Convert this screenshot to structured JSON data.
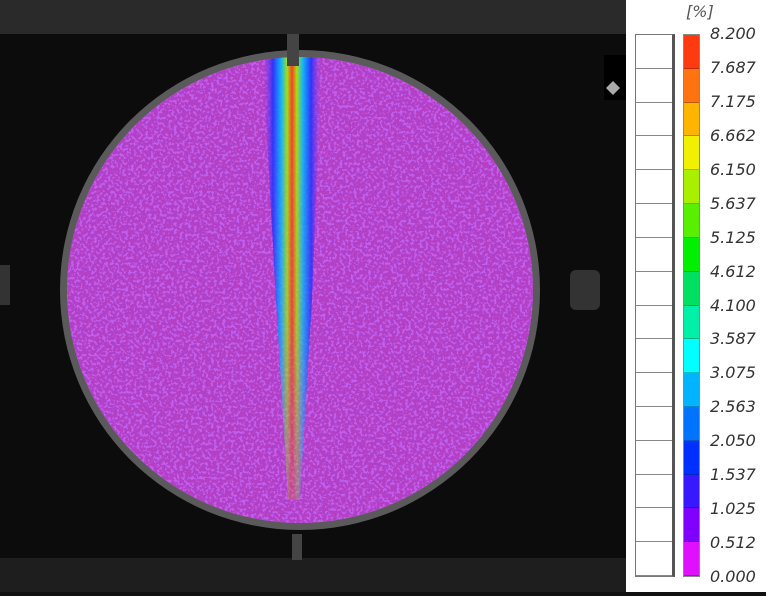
{
  "legend": {
    "unit": "[%]",
    "labels": [
      "8.200",
      "7.687",
      "7.175",
      "6.662",
      "6.150",
      "5.637",
      "5.125",
      "4.612",
      "4.100",
      "3.587",
      "3.075",
      "2.563",
      "2.050",
      "1.537",
      "1.025",
      "0.512",
      "0.000"
    ],
    "colors": [
      "#ff3a10",
      "#ff7410",
      "#ffb400",
      "#f0f000",
      "#a8f000",
      "#58f000",
      "#00f000",
      "#00e060",
      "#00f0a8",
      "#00ffff",
      "#00b4ff",
      "#0074ff",
      "#0030ff",
      "#3818ff",
      "#8000ff",
      "#e010ff"
    ]
  },
  "chart_data": {
    "type": "heatmap",
    "title": "",
    "colorbar": {
      "unit": "[%]",
      "range": [
        0.0,
        8.2
      ],
      "levels": [
        0.0,
        0.512,
        1.025,
        1.537,
        2.05,
        2.563,
        3.075,
        3.587,
        4.1,
        4.612,
        5.125,
        5.637,
        6.15,
        6.662,
        7.175,
        7.687,
        8.2
      ]
    },
    "description_of_field": "circular specimen, background strain in lowest band, vertical strain band peaking near top center"
  }
}
